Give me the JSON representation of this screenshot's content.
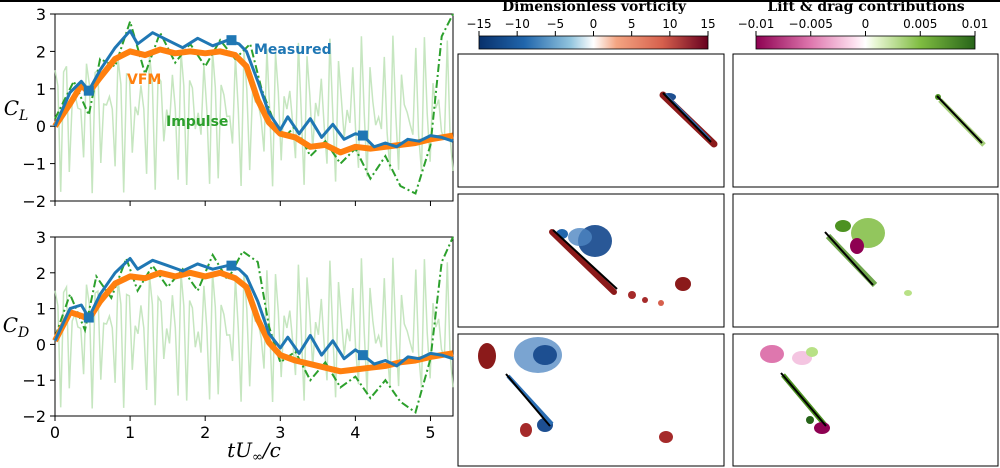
{
  "chart_data": [
    {
      "type": "line",
      "id": "lift",
      "ylabel": "C_L",
      "xlim": [
        0,
        5.3
      ],
      "ylim": [
        -2,
        3
      ],
      "x_ticks": [
        "0",
        "1",
        "2",
        "3",
        "4",
        "5"
      ],
      "y_ticks": [
        "3",
        "2",
        "1",
        "0",
        "−1",
        "−2"
      ],
      "annotations": [
        "Measured",
        "VFM",
        "Impulse"
      ],
      "series": [
        {
          "name": "Measured",
          "color": "#1f77b4",
          "x": [
            0,
            0.2,
            0.35,
            0.45,
            0.6,
            0.8,
            1.0,
            1.1,
            1.3,
            1.5,
            1.7,
            1.9,
            2.1,
            2.3,
            2.45,
            2.55,
            2.7,
            2.85,
            3.0,
            3.1,
            3.25,
            3.4,
            3.55,
            3.7,
            3.85,
            4.0,
            4.1,
            4.25,
            4.4,
            4.55,
            4.7,
            4.85,
            5.0,
            5.15,
            5.3
          ],
          "y": [
            0,
            0.9,
            1.2,
            0.95,
            1.5,
            2.1,
            2.55,
            2.2,
            2.5,
            2.3,
            2.1,
            2.35,
            2.15,
            2.3,
            2.2,
            2.0,
            1.2,
            0.35,
            -0.1,
            0.25,
            -0.2,
            0.2,
            -0.3,
            0.05,
            -0.35,
            -0.2,
            -0.25,
            -0.55,
            -0.45,
            -0.55,
            -0.35,
            -0.4,
            -0.25,
            -0.3,
            -0.4
          ]
        },
        {
          "name": "VFM",
          "color": "#ff7f0e",
          "x": [
            0,
            0.2,
            0.35,
            0.45,
            0.6,
            0.8,
            1.0,
            1.2,
            1.4,
            1.6,
            1.8,
            2.0,
            2.2,
            2.4,
            2.55,
            2.7,
            2.85,
            3.0,
            3.2,
            3.4,
            3.6,
            3.8,
            4.0,
            4.2,
            4.4,
            4.6,
            4.8,
            5.0,
            5.15,
            5.3
          ],
          "y": [
            0,
            0.6,
            1.1,
            0.9,
            1.3,
            1.8,
            2.0,
            1.9,
            2.05,
            1.95,
            2.0,
            1.95,
            2.0,
            1.9,
            1.6,
            0.7,
            0.1,
            -0.2,
            -0.3,
            -0.55,
            -0.5,
            -0.7,
            -0.55,
            -0.6,
            -0.55,
            -0.5,
            -0.45,
            -0.35,
            -0.3,
            -0.25
          ]
        },
        {
          "name": "Impulse",
          "color": "#2ca02c",
          "x": [
            0,
            0.25,
            0.45,
            0.6,
            0.8,
            1.0,
            1.2,
            1.4,
            1.6,
            1.8,
            2.0,
            2.2,
            2.4,
            2.6,
            2.75,
            2.9,
            3.05,
            3.2,
            3.4,
            3.6,
            3.8,
            4.0,
            4.2,
            4.4,
            4.6,
            4.8,
            5.0,
            5.15,
            5.3
          ],
          "y": [
            0.2,
            1.2,
            0.3,
            1.8,
            1.6,
            2.8,
            1.4,
            2.5,
            1.7,
            2.2,
            1.6,
            2.3,
            1.8,
            2.2,
            1.0,
            0.2,
            -0.3,
            0.0,
            -0.8,
            -0.4,
            -1.0,
            -0.6,
            -1.4,
            -0.8,
            -1.6,
            -1.8,
            -0.5,
            2.4,
            3.0
          ]
        }
      ]
    },
    {
      "type": "line",
      "id": "drag",
      "ylabel": "C_D",
      "xlabel": "tU∞/c",
      "xlim": [
        0,
        5.3
      ],
      "ylim": [
        -2,
        3
      ],
      "x_ticks": [
        "0",
        "1",
        "2",
        "3",
        "4",
        "5"
      ],
      "y_ticks": [
        "3",
        "2",
        "1",
        "0",
        "−1",
        "−2"
      ],
      "series": [
        {
          "name": "Measured",
          "color": "#1f77b4",
          "x": [
            0,
            0.2,
            0.35,
            0.45,
            0.6,
            0.8,
            1.0,
            1.1,
            1.3,
            1.5,
            1.7,
            1.9,
            2.1,
            2.3,
            2.45,
            2.55,
            2.7,
            2.85,
            3.0,
            3.1,
            3.25,
            3.4,
            3.55,
            3.7,
            3.85,
            4.0,
            4.1,
            4.25,
            4.4,
            4.55,
            4.7,
            4.85,
            5.0,
            5.15,
            5.3
          ],
          "y": [
            0.1,
            1.0,
            1.1,
            0.75,
            1.4,
            2.0,
            2.4,
            2.1,
            2.35,
            2.2,
            2.05,
            2.25,
            2.1,
            2.2,
            2.1,
            1.9,
            1.2,
            0.3,
            -0.1,
            0.2,
            -0.25,
            0.25,
            -0.3,
            0.1,
            -0.4,
            -0.15,
            -0.3,
            -0.55,
            -0.45,
            -0.6,
            -0.35,
            -0.4,
            -0.25,
            -0.3,
            -0.4
          ]
        },
        {
          "name": "VFM",
          "color": "#ff7f0e",
          "x": [
            0,
            0.2,
            0.35,
            0.45,
            0.6,
            0.8,
            1.0,
            1.2,
            1.4,
            1.6,
            1.8,
            2.0,
            2.2,
            2.4,
            2.55,
            2.7,
            2.85,
            3.0,
            3.2,
            3.4,
            3.6,
            3.8,
            4.0,
            4.2,
            4.4,
            4.6,
            4.8,
            5.0,
            5.15,
            5.3
          ],
          "y": [
            0.1,
            0.9,
            0.8,
            0.7,
            1.2,
            1.7,
            1.9,
            1.85,
            2.0,
            1.9,
            2.0,
            1.9,
            2.0,
            1.85,
            1.6,
            0.7,
            0.05,
            -0.3,
            -0.45,
            -0.55,
            -0.65,
            -0.75,
            -0.7,
            -0.65,
            -0.6,
            -0.5,
            -0.45,
            -0.35,
            -0.3,
            -0.25
          ]
        },
        {
          "name": "Impulse",
          "color": "#2ca02c",
          "x": [
            0,
            0.2,
            0.4,
            0.55,
            0.75,
            0.95,
            1.1,
            1.3,
            1.5,
            1.7,
            1.9,
            2.1,
            2.3,
            2.5,
            2.7,
            2.85,
            3.0,
            3.2,
            3.4,
            3.6,
            3.8,
            4.0,
            4.2,
            4.4,
            4.6,
            4.8,
            5.0,
            5.15,
            5.3
          ],
          "y": [
            0.2,
            1.4,
            0.4,
            1.9,
            1.3,
            2.4,
            1.5,
            2.2,
            1.6,
            2.1,
            1.5,
            2.5,
            1.8,
            2.6,
            2.3,
            0.5,
            -0.5,
            -0.2,
            -1.0,
            -0.5,
            -1.2,
            -0.9,
            -1.5,
            -1.0,
            -1.6,
            -1.9,
            -0.4,
            2.3,
            3.0
          ]
        }
      ]
    }
  ],
  "colorbars": [
    {
      "title": "Dimensionless vorticity",
      "ticks": [
        "−15",
        "−10",
        "−5",
        "0",
        "5",
        "10",
        "15"
      ],
      "colors": [
        "#08306b",
        "#2166ac",
        "#92c5de",
        "#ffffff",
        "#f4a582",
        "#d6604d",
        "#67001f"
      ]
    },
    {
      "title": "Lift & drag contributions",
      "ticks": [
        "−0.01",
        "−0.005",
        "0",
        "0.005",
        "0.01"
      ],
      "colors": [
        "#8e0152",
        "#de77ae",
        "#fde0ef",
        "#ffffff",
        "#b8e186",
        "#4d9221",
        "#276419"
      ]
    }
  ],
  "palette": {
    "measured": "#1f77b4",
    "vfm": "#ff7f0e",
    "impulse": "#2ca02c",
    "impulse_faint": "#b8e0b0",
    "plate": "#000000"
  }
}
